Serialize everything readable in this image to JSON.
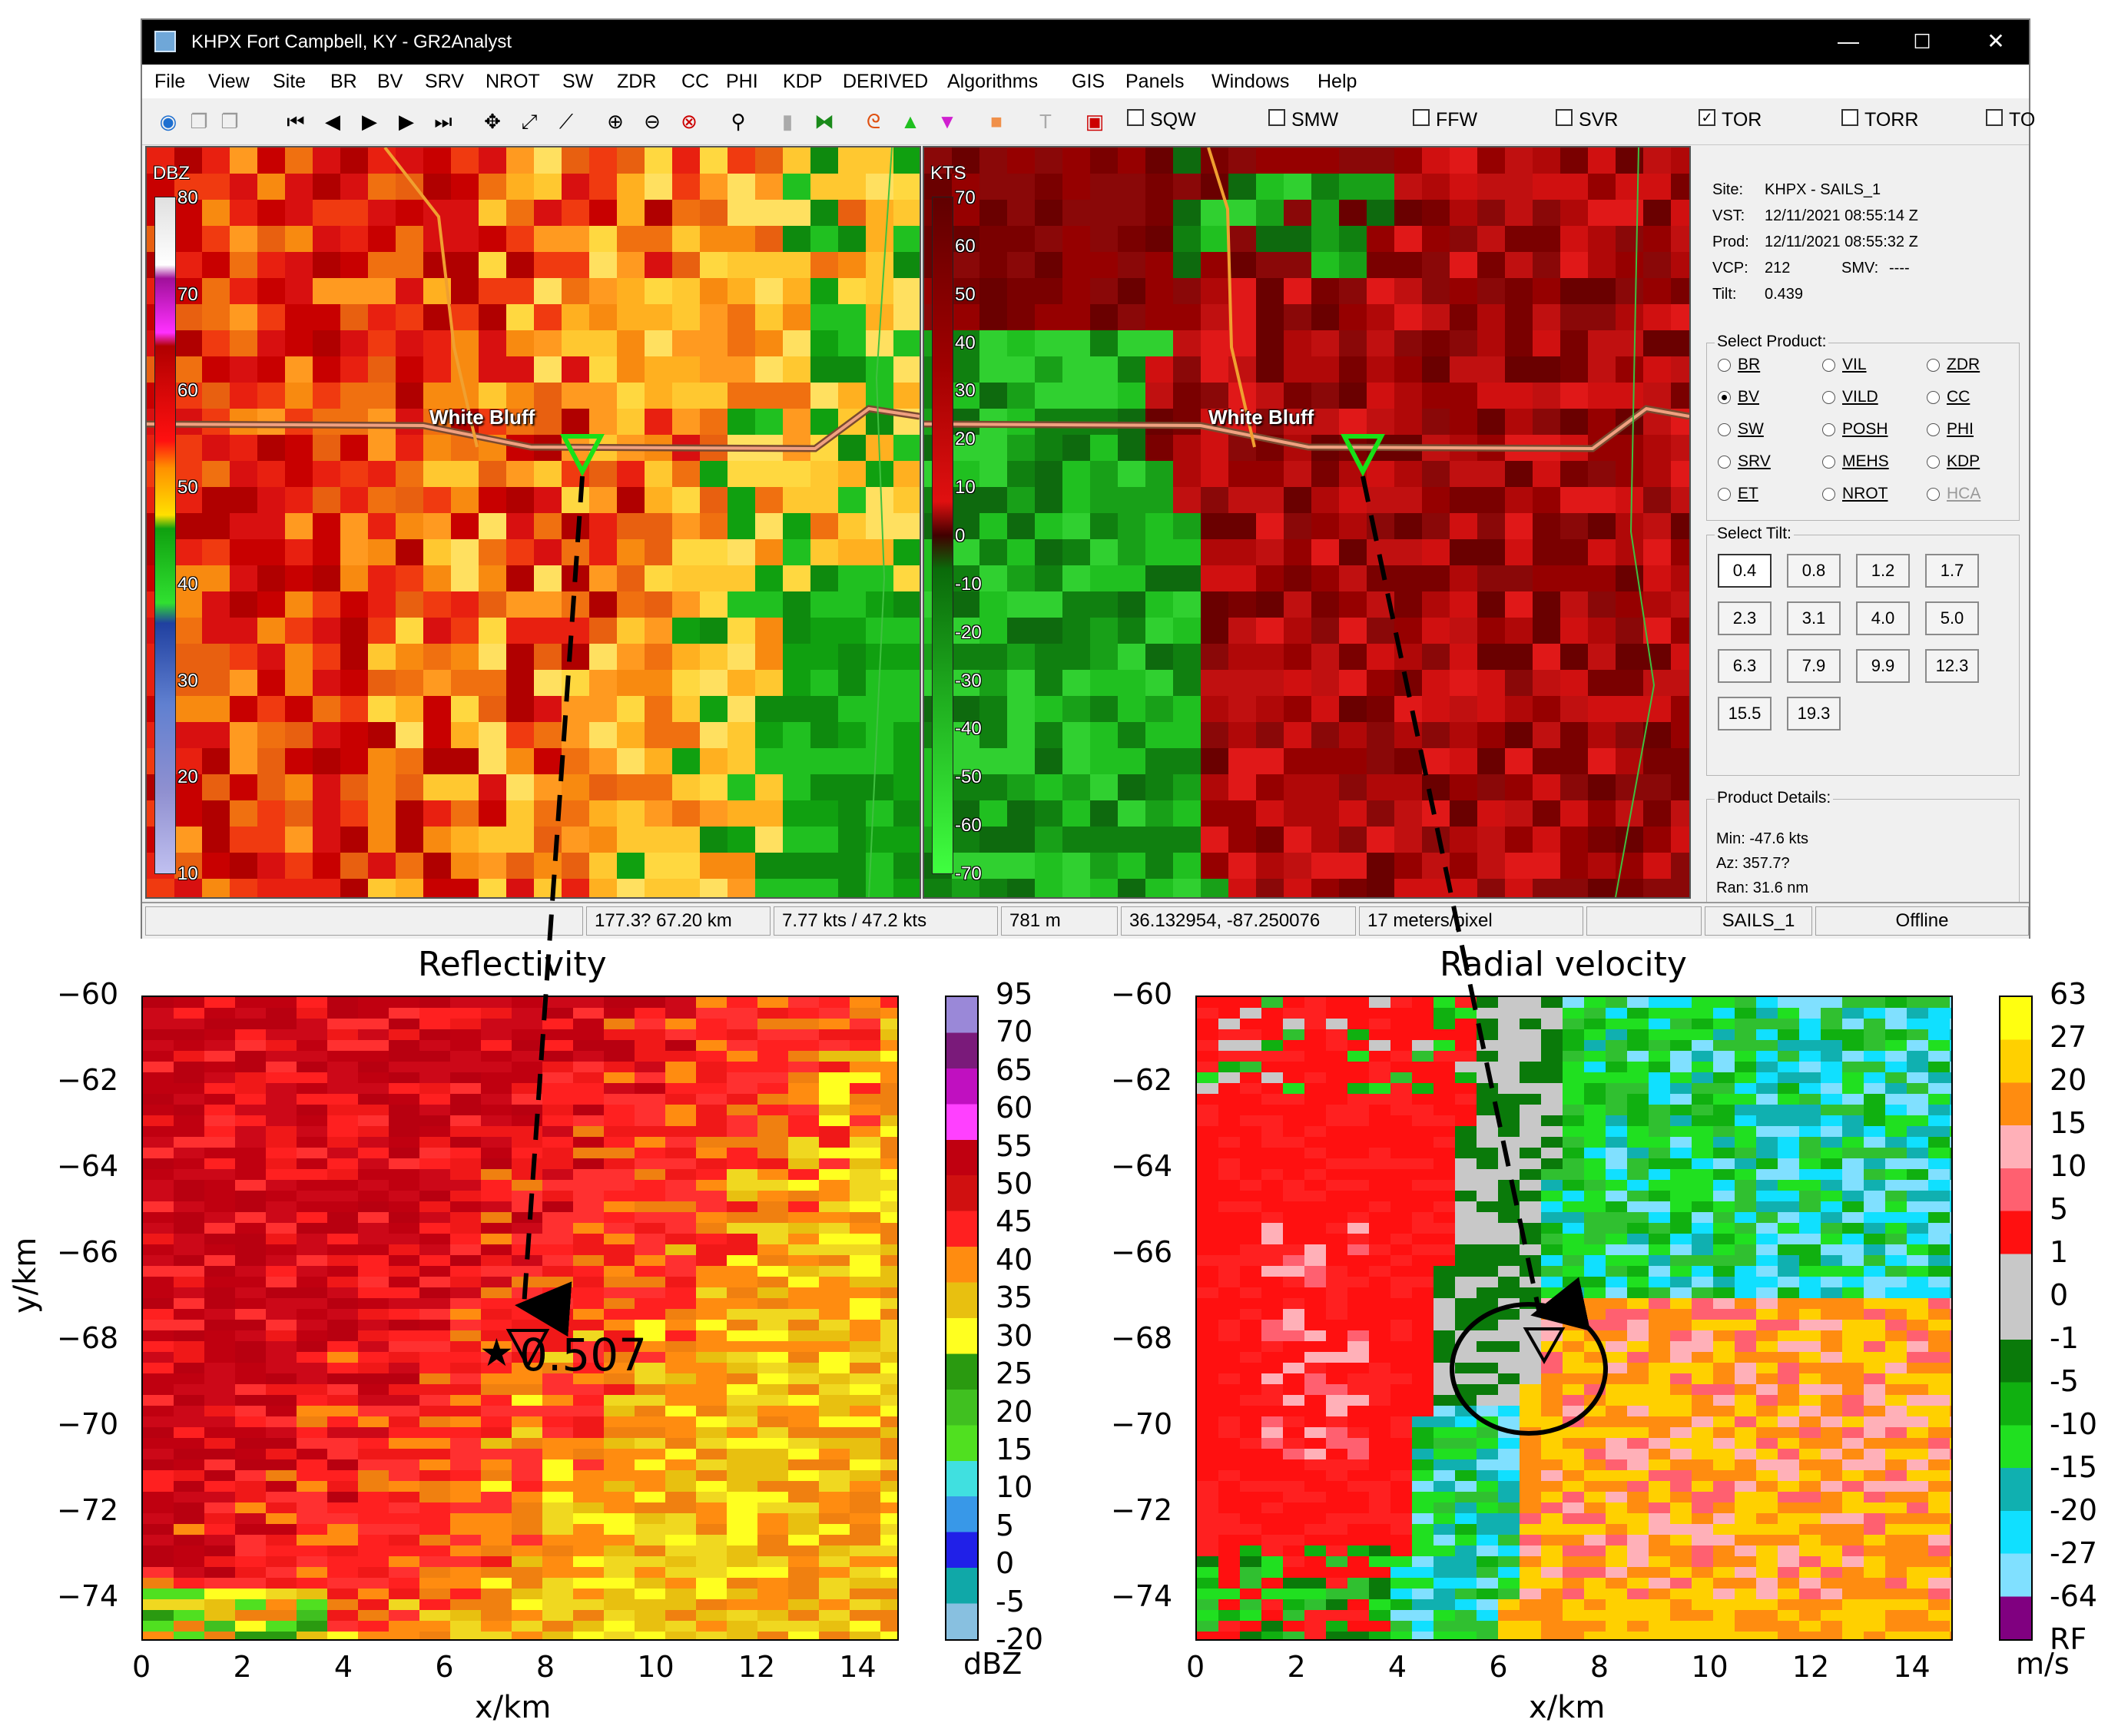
{
  "window": {
    "title": "KHPX Fort Campbell, KY - GR2Analyst",
    "controls": [
      "—",
      "☐",
      "✕"
    ]
  },
  "menu": [
    "File",
    "View",
    "Site",
    "BR",
    "BV",
    "SRV",
    "NROT",
    "SW",
    "ZDR",
    "CC",
    "PHI",
    "KDP",
    "DERIVED",
    "Algorithms",
    "GIS",
    "Panels",
    "Windows",
    "Help"
  ],
  "toolbar": {
    "icons": [
      "globe-icon",
      "copy-icon",
      "copy-alt-icon",
      "skip-start-icon",
      "step-back-icon",
      "play-icon",
      "step-forward-icon",
      "skip-end-icon",
      "move-icon",
      "resize-icon",
      "measure-icon",
      "zoom-in-icon",
      "zoom-out-icon",
      "zoom-reset-icon",
      "probe-icon",
      "blank-icon",
      "split-icon",
      "storm-icon",
      "up-triangle-icon",
      "down-triangle-icon",
      "color-box-icon",
      "text-icon",
      "warning-box-icon"
    ],
    "warnings": [
      {
        "label": "SQW",
        "checked": false
      },
      {
        "label": "SMW",
        "checked": false
      },
      {
        "label": "FFW",
        "checked": false
      },
      {
        "label": "SVR",
        "checked": false
      },
      {
        "label": "TOR",
        "checked": true
      },
      {
        "label": "TORR",
        "checked": false
      },
      {
        "label": "TO",
        "checked": false
      }
    ]
  },
  "left_panel": {
    "unit": "DBZ",
    "ticks": [
      "80",
      "70",
      "60",
      "50",
      "40",
      "30",
      "20",
      "10"
    ],
    "place": "White Bluff"
  },
  "right_panel": {
    "unit": "KTS",
    "ticks": [
      "70",
      "60",
      "50",
      "40",
      "30",
      "20",
      "10",
      "0",
      "-10",
      "-20",
      "-30",
      "-40",
      "-50",
      "-60",
      "-70"
    ],
    "place": "White Bluff"
  },
  "info": {
    "site_label": "Site:",
    "site": "KHPX - SAILS_1",
    "vst_label": "VST:",
    "vst": "12/11/2021 08:55:14 Z",
    "prod_label": "Prod:",
    "prod": "12/11/2021 08:55:32 Z",
    "vcp_label": "VCP:",
    "vcp": "212",
    "smv_label": "SMV:",
    "smv": "----",
    "tilt_label": "Tilt:",
    "tilt": "0.439",
    "select_product": "Select Product:",
    "products": [
      {
        "label": "BR",
        "on": false
      },
      {
        "label": "VIL",
        "on": false
      },
      {
        "label": "ZDR",
        "on": false
      },
      {
        "label": "BV",
        "on": true
      },
      {
        "label": "VILD",
        "on": false
      },
      {
        "label": "CC",
        "on": false
      },
      {
        "label": "SW",
        "on": false
      },
      {
        "label": "POSH",
        "on": false
      },
      {
        "label": "PHI",
        "on": false
      },
      {
        "label": "SRV",
        "on": false
      },
      {
        "label": "MEHS",
        "on": false
      },
      {
        "label": "KDP",
        "on": false
      },
      {
        "label": "ET",
        "on": false
      },
      {
        "label": "NROT",
        "on": false
      },
      {
        "label": "HCA",
        "on": false
      }
    ],
    "select_tilt": "Select Tilt:",
    "tilts": [
      "0.4",
      "0.8",
      "1.2",
      "1.7",
      "2.3",
      "3.1",
      "4.0",
      "5.0",
      "6.3",
      "7.9",
      "9.9",
      "12.3",
      "15.5",
      "19.3"
    ],
    "product_details": "Product Details:",
    "min": "Min:  -47.6 kts",
    "az": "Az:  357.7?",
    "ran": "Ran:  31.6 nm"
  },
  "status": [
    "",
    "177.3? 67.20 km",
    "7.77 kts / 47.2 kts",
    "781 m",
    "36.132954, -87.250076",
    "17 meters/pixel",
    "",
    "SAILS_1",
    "Offline"
  ],
  "plots": {
    "reflectivity": {
      "title": "Reflectivity",
      "annotation": "0.507",
      "xlabel": "x/km",
      "ylabel": "y/km",
      "xticks": [
        "0",
        "2",
        "4",
        "6",
        "8",
        "10",
        "12",
        "14"
      ],
      "yticks": [
        "−60",
        "−62",
        "−64",
        "−66",
        "−68",
        "−70",
        "−72",
        "−74"
      ],
      "cbar_ticks": [
        "95",
        "70",
        "65",
        "60",
        "55",
        "50",
        "45",
        "40",
        "35",
        "30",
        "25",
        "20",
        "15",
        "10",
        "5",
        "0",
        "-5",
        "-20"
      ],
      "cbar_unit": "dBZ",
      "cbar_colors": [
        "#9a88d8",
        "#7a1a7a",
        "#c010c0",
        "#ff40ff",
        "#c00010",
        "#d01010",
        "#ff2020",
        "#ff8c10",
        "#e8c010",
        "#ffff20",
        "#2a9a10",
        "#40c020",
        "#50e020",
        "#40e0e0",
        "#3898e8",
        "#2020e8",
        "#10a8a8",
        "#88c0e0"
      ]
    },
    "velocity": {
      "title": "Radial velocity",
      "xlabel": "x/km",
      "ylabel": "",
      "xticks": [
        "0",
        "2",
        "4",
        "6",
        "8",
        "10",
        "12",
        "14"
      ],
      "yticks": [
        "−60",
        "−62",
        "−64",
        "−66",
        "−68",
        "−70",
        "−72",
        "−74"
      ],
      "cbar_ticks": [
        "63",
        "27",
        "20",
        "15",
        "10",
        "5",
        "1",
        "0",
        "-1",
        "-5",
        "-10",
        "-15",
        "-20",
        "-27",
        "-64",
        "RF"
      ],
      "cbar_unit": "m/s",
      "cbar_colors": [
        "#ffff10",
        "#ffd000",
        "#ff8c10",
        "#ffb0b8",
        "#ff6070",
        "#ff1010",
        "#c8c8c8",
        "#c8c8c8",
        "#0a7a0a",
        "#10b010",
        "#20e020",
        "#10b0b0",
        "#10e0ff",
        "#80e0ff",
        "#800080"
      ]
    }
  }
}
